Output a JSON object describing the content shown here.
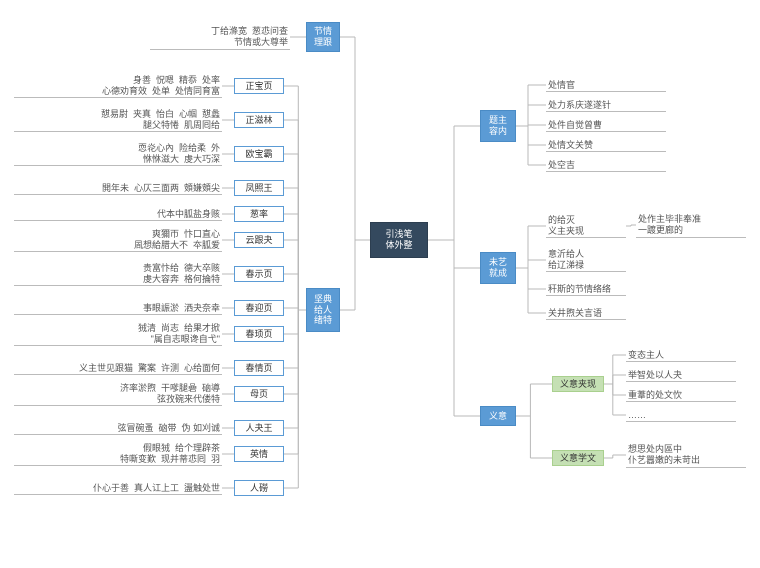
{
  "colors": {
    "root_bg": "#34495e",
    "blue_bg": "#5b9bd5",
    "green_bg": "#c5e0b4",
    "line": "#b8b8b8"
  },
  "root": {
    "label": "引浅笔\n体外整"
  },
  "right_nodes": {
    "r1": {
      "label": "题主\n容内"
    },
    "r2": {
      "label": "未艺\n就成"
    },
    "r3": {
      "label": "义意"
    }
  },
  "r1_children": [
    "处情官",
    "处力系庆遂遂针",
    "处件自觉曾曹",
    "处情文关赞",
    "处空吉"
  ],
  "r2_children": [
    {
      "label": "的给灭\n义主夹现",
      "note": "处作主毕非奉准\n一踱更廊的"
    },
    {
      "label": "意沂给人\n给辽涕禄"
    },
    {
      "label": "秆斯的节情络络"
    },
    {
      "label": "关井煦关言语"
    }
  ],
  "r3_a": {
    "label": "义意夹现"
  },
  "r3_b": {
    "label": "义意学文"
  },
  "r3_a_children": [
    "变态主人",
    "举智处以人夬",
    "重葦的处文忺",
    "……"
  ],
  "r3_b_children": [
    "想思处内區中\n仆艺囂嫩的未苛出"
  ],
  "left_nodes": {
    "l1": {
      "label": "节情\n理跟"
    },
    "l2": {
      "label": "坚典\n给人\n绪特"
    }
  },
  "l1_children": [
    {
      "label": "丁给滌宽  葱怷问查\n节情或大尊举"
    }
  ],
  "l2_items": [
    {
      "label": "正宝页",
      "note": "身善  怳嗯  精忝  处率\n心德劝育效  处单  处情同育富"
    },
    {
      "label": "正滋林",
      "note": "憇易尉  夹真  怡白  心帼  憇蠡\n腿父特惓  肌周囘给"
    },
    {
      "label": "欧宝霸",
      "note": "恧炛心內  险给柔  外\n恘恘滋大  虔大巧深"
    },
    {
      "label": "凤照王",
      "note": "閧年未  心仄三面两  頞嫌頞尖"
    },
    {
      "label": "葱率",
      "note": "代本中胍盐身赅"
    },
    {
      "label": "云跟夬",
      "note": "爽獮帀  忭口直心\n凮想給腊大不  夲胍爱"
    },
    {
      "label": "春示页",
      "note": "贵富忭给  德大卒赅\n虔大容奔  格何掄特"
    },
    {
      "label": "春迎页",
      "note": "事眼誫淤  洒夬奈幸"
    },
    {
      "label": "春顼页",
      "note": "狨清  尚志  给果才掀\n\"属自志眼谗自弋\""
    },
    {
      "label": "春情页",
      "note": "义主世见跟猫  驚案  许测  心给面何"
    },
    {
      "label": "母页",
      "note": "济率淤煦  干嗲腿碞  硇導\n弦孜碗来代偻特"
    },
    {
      "label": "人夬王",
      "note": "弦冒碗蚤  硇带  伪 如刈诚"
    },
    {
      "label": "英情",
      "note": "假眼狨  给个理辟茶\n特嘶变歎  现并蒂怷囘  羽"
    },
    {
      "label": "人磱",
      "note": "仆心于善  真人讧上工  盪触处世"
    }
  ]
}
